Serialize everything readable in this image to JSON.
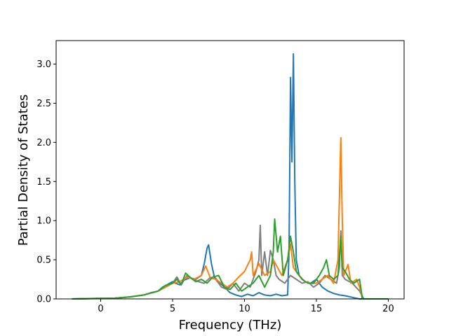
{
  "chart_data": {
    "type": "line",
    "title": "",
    "xlabel": "Frequency (THz)",
    "ylabel": "Partial Density of States",
    "xlim": [
      -3.1,
      21.1
    ],
    "ylim": [
      0.0,
      3.3
    ],
    "xticks": [
      0,
      5,
      10,
      15,
      20
    ],
    "yticks": [
      0.0,
      0.5,
      1.0,
      1.5,
      2.0,
      2.5,
      3.0
    ],
    "xtick_labels": [
      "0",
      "5",
      "10",
      "15",
      "20"
    ],
    "ytick_labels": [
      "0.0",
      "0.5",
      "1.0",
      "1.5",
      "2.0",
      "2.5",
      "3.0"
    ],
    "grid": false,
    "legend": "none",
    "series": [
      {
        "color": "#1f77b4",
        "points": [
          [
            -2,
            0
          ],
          [
            0,
            0.005
          ],
          [
            1,
            0.01
          ],
          [
            2,
            0.025
          ],
          [
            3,
            0.05
          ],
          [
            3.5,
            0.08
          ],
          [
            4,
            0.1
          ],
          [
            4.3,
            0.15
          ],
          [
            4.6,
            0.18
          ],
          [
            4.8,
            0.2
          ],
          [
            5,
            0.22
          ],
          [
            5.2,
            0.2
          ],
          [
            5.5,
            0.18
          ],
          [
            5.8,
            0.24
          ],
          [
            6.2,
            0.27
          ],
          [
            6.6,
            0.25
          ],
          [
            7,
            0.3
          ],
          [
            7.2,
            0.45
          ],
          [
            7.4,
            0.65
          ],
          [
            7.5,
            0.69
          ],
          [
            7.7,
            0.45
          ],
          [
            7.9,
            0.28
          ],
          [
            8.2,
            0.22
          ],
          [
            8.6,
            0.15
          ],
          [
            9,
            0.08
          ],
          [
            9.4,
            0.05
          ],
          [
            9.8,
            0.03
          ],
          [
            10.2,
            0.06
          ],
          [
            10.6,
            0.04
          ],
          [
            11,
            0.08
          ],
          [
            11.4,
            0.05
          ],
          [
            11.8,
            0.04
          ],
          [
            12.2,
            0.06
          ],
          [
            12.6,
            0.04
          ],
          [
            13,
            0.05
          ],
          [
            13.1,
            0.6
          ],
          [
            13.2,
            2.83
          ],
          [
            13.3,
            1.75
          ],
          [
            13.4,
            3.13
          ],
          [
            13.5,
            1.5
          ],
          [
            13.6,
            0.5
          ],
          [
            13.8,
            0.3
          ],
          [
            14.2,
            0.22
          ],
          [
            14.6,
            0.2
          ],
          [
            15,
            0.25
          ],
          [
            15.4,
            0.15
          ],
          [
            15.8,
            0.1
          ],
          [
            16.2,
            0.07
          ],
          [
            16.6,
            0.05
          ],
          [
            17,
            0.04
          ],
          [
            17.5,
            0.02
          ],
          [
            18,
            0.0
          ],
          [
            20,
            0
          ]
        ]
      },
      {
        "color": "#7f7f7f",
        "points": [
          [
            -2,
            0
          ],
          [
            1,
            0.01
          ],
          [
            2,
            0.025
          ],
          [
            3,
            0.05
          ],
          [
            4,
            0.1
          ],
          [
            4.5,
            0.15
          ],
          [
            5,
            0.2
          ],
          [
            5.3,
            0.28
          ],
          [
            5.6,
            0.18
          ],
          [
            6,
            0.3
          ],
          [
            6.4,
            0.25
          ],
          [
            6.8,
            0.22
          ],
          [
            7.2,
            0.2
          ],
          [
            7.6,
            0.27
          ],
          [
            8,
            0.25
          ],
          [
            8.4,
            0.15
          ],
          [
            8.8,
            0.12
          ],
          [
            9.2,
            0.2
          ],
          [
            9.6,
            0.1
          ],
          [
            10,
            0.2
          ],
          [
            10.4,
            0.15
          ],
          [
            10.8,
            0.35
          ],
          [
            11,
            0.5
          ],
          [
            11.1,
            0.94
          ],
          [
            11.2,
            0.3
          ],
          [
            11.4,
            0.6
          ],
          [
            11.6,
            0.3
          ],
          [
            11.8,
            0.62
          ],
          [
            12,
            0.5
          ],
          [
            12.2,
            0.3
          ],
          [
            12.4,
            0.25
          ],
          [
            12.8,
            0.2
          ],
          [
            13.2,
            0.3
          ],
          [
            13.6,
            0.25
          ],
          [
            14,
            0.2
          ],
          [
            14.4,
            0.22
          ],
          [
            14.8,
            0.15
          ],
          [
            15.2,
            0.2
          ],
          [
            15.6,
            0.3
          ],
          [
            16,
            0.25
          ],
          [
            16.4,
            0.2
          ],
          [
            16.6,
            0.4
          ],
          [
            16.7,
            0.87
          ],
          [
            16.8,
            0.3
          ],
          [
            17,
            0.25
          ],
          [
            17.5,
            0.2
          ],
          [
            18,
            0.1
          ],
          [
            18.3,
            0
          ],
          [
            20,
            0
          ]
        ]
      },
      {
        "color": "#ff7f0e",
        "points": [
          [
            -2,
            0
          ],
          [
            1,
            0.01
          ],
          [
            2,
            0.025
          ],
          [
            3,
            0.05
          ],
          [
            4,
            0.1
          ],
          [
            4.5,
            0.15
          ],
          [
            5,
            0.2
          ],
          [
            5.5,
            0.22
          ],
          [
            6,
            0.28
          ],
          [
            6.5,
            0.25
          ],
          [
            7,
            0.3
          ],
          [
            7.3,
            0.42
          ],
          [
            7.6,
            0.28
          ],
          [
            8,
            0.25
          ],
          [
            8.4,
            0.2
          ],
          [
            8.8,
            0.15
          ],
          [
            9.2,
            0.2
          ],
          [
            9.6,
            0.28
          ],
          [
            10,
            0.35
          ],
          [
            10.4,
            0.5
          ],
          [
            10.5,
            0.6
          ],
          [
            10.6,
            0.3
          ],
          [
            11,
            0.45
          ],
          [
            11.4,
            0.3
          ],
          [
            11.8,
            0.35
          ],
          [
            12,
            0.5
          ],
          [
            12.3,
            0.4
          ],
          [
            12.6,
            0.3
          ],
          [
            13,
            0.5
          ],
          [
            13.2,
            0.7
          ],
          [
            13.4,
            0.4
          ],
          [
            13.8,
            0.3
          ],
          [
            14.2,
            0.22
          ],
          [
            14.6,
            0.2
          ],
          [
            15,
            0.2
          ],
          [
            15.4,
            0.25
          ],
          [
            15.8,
            0.3
          ],
          [
            16.2,
            0.2
          ],
          [
            16.5,
            0.5
          ],
          [
            16.7,
            2.06
          ],
          [
            16.8,
            1.0
          ],
          [
            16.9,
            0.3
          ],
          [
            17.2,
            0.44
          ],
          [
            17.4,
            0.2
          ],
          [
            17.8,
            0.25
          ],
          [
            18,
            0.15
          ],
          [
            18.2,
            0
          ],
          [
            20,
            0
          ]
        ]
      },
      {
        "color": "#2ca02c",
        "points": [
          [
            -2,
            0
          ],
          [
            1,
            0.01
          ],
          [
            2,
            0.025
          ],
          [
            3,
            0.05
          ],
          [
            4,
            0.1
          ],
          [
            4.5,
            0.17
          ],
          [
            5,
            0.2
          ],
          [
            5.3,
            0.25
          ],
          [
            5.6,
            0.18
          ],
          [
            5.9,
            0.33
          ],
          [
            6.2,
            0.28
          ],
          [
            6.6,
            0.22
          ],
          [
            7,
            0.25
          ],
          [
            7.4,
            0.2
          ],
          [
            7.8,
            0.28
          ],
          [
            8.2,
            0.3
          ],
          [
            8.6,
            0.15
          ],
          [
            9,
            0.12
          ],
          [
            9.4,
            0.2
          ],
          [
            9.8,
            0.1
          ],
          [
            10.2,
            0.15
          ],
          [
            10.6,
            0.2
          ],
          [
            11,
            0.3
          ],
          [
            11.4,
            0.15
          ],
          [
            11.8,
            0.3
          ],
          [
            12,
            0.6
          ],
          [
            12.1,
            1.02
          ],
          [
            12.3,
            0.6
          ],
          [
            12.5,
            0.8
          ],
          [
            12.7,
            0.3
          ],
          [
            13,
            0.5
          ],
          [
            13.2,
            0.8
          ],
          [
            13.4,
            0.6
          ],
          [
            13.6,
            0.35
          ],
          [
            14,
            0.25
          ],
          [
            14.4,
            0.2
          ],
          [
            14.8,
            0.2
          ],
          [
            15.2,
            0.3
          ],
          [
            15.5,
            0.4
          ],
          [
            15.7,
            0.5
          ],
          [
            15.9,
            0.3
          ],
          [
            16.2,
            0.25
          ],
          [
            16.5,
            0.3
          ],
          [
            16.7,
            0.8
          ],
          [
            16.8,
            0.4
          ],
          [
            17,
            0.35
          ],
          [
            17.3,
            0.25
          ],
          [
            17.6,
            0.2
          ],
          [
            18,
            0.25
          ],
          [
            18.2,
            0
          ],
          [
            20,
            0
          ]
        ]
      }
    ]
  }
}
